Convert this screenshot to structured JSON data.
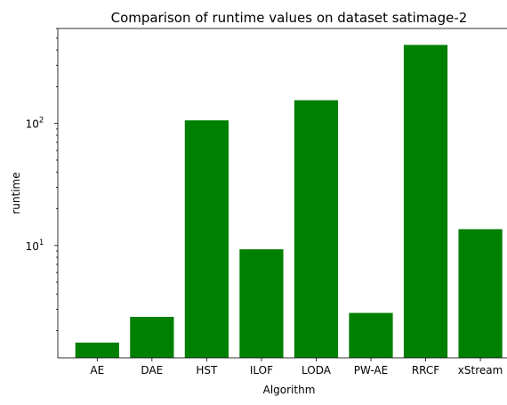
{
  "chart_data": {
    "type": "bar",
    "title": "Comparison of runtime values on dataset satimage-2",
    "xlabel": "Algorithm",
    "ylabel": "runtime",
    "yscale": "log",
    "ylim": [
      1.2,
      600
    ],
    "categories": [
      "AE",
      "DAE",
      "HST",
      "ILOF",
      "LODA",
      "PW-AE",
      "RRCF",
      "xStream"
    ],
    "values": [
      1.6,
      2.6,
      106,
      9.3,
      155,
      2.8,
      440,
      13.6
    ],
    "bar_color": "#008000",
    "grid": false,
    "legend": "none",
    "y_major_ticks": [
      {
        "value": 10,
        "base": "10",
        "exp": "1"
      },
      {
        "value": 100,
        "base": "10",
        "exp": "2"
      }
    ]
  }
}
